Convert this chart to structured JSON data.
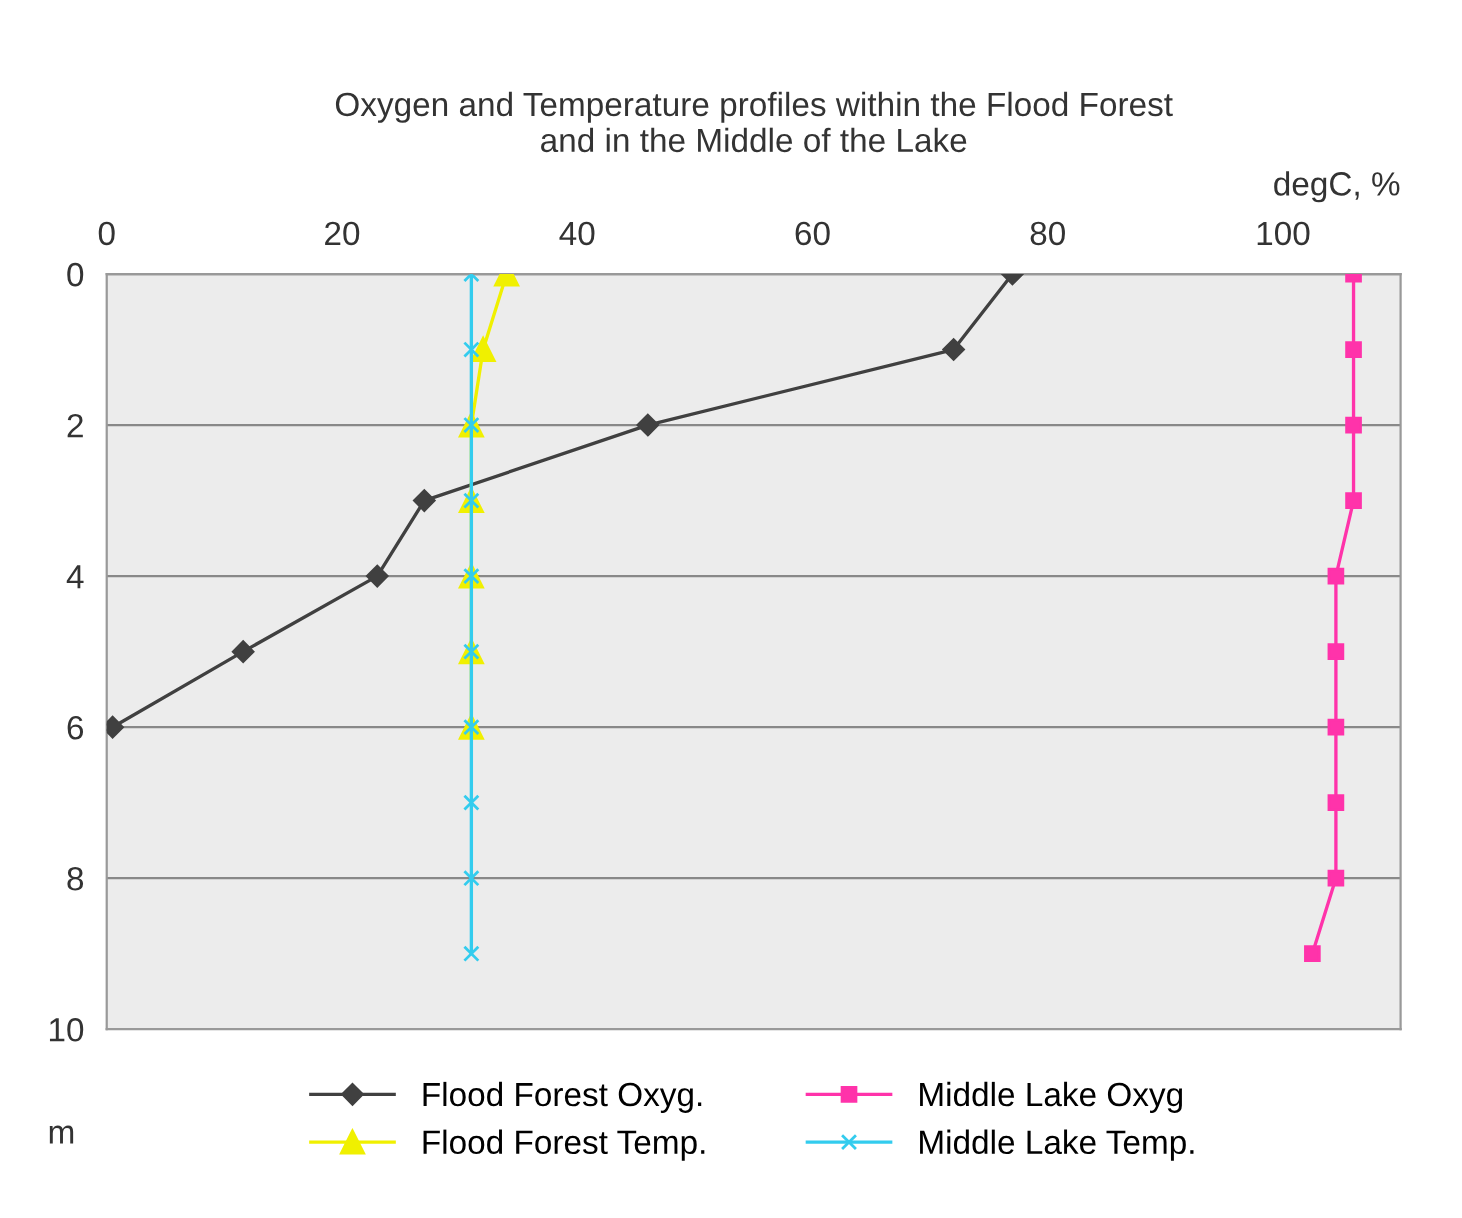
{
  "chart_data": {
    "type": "line",
    "title": "Oxygen and Temperature profiles within the Flood Forest\nand in the Middle of the Lake",
    "xlabel": "degC, %",
    "ylabel": "m",
    "orientation": "horizontal",
    "xlim": [
      0,
      110
    ],
    "xticks": [
      0,
      20,
      40,
      60,
      80,
      100
    ],
    "ylim": [
      10,
      0
    ],
    "yticks": [
      0,
      2,
      4,
      6,
      8,
      10
    ],
    "grid": "y",
    "legend": "bottom",
    "line_style": "solid",
    "series": [
      {
        "name": "Flood Forest Oxyg.",
        "color": "#404040",
        "marker": "diamond",
        "x": [
          0,
          1,
          2,
          3,
          4,
          5,
          6
        ],
        "values": [
          77,
          72,
          46,
          27,
          23,
          11.6,
          0.5
        ]
      },
      {
        "name": "Flood Forest Temp.",
        "color": "#f0f000",
        "marker": "triangle",
        "x": [
          0,
          1,
          2,
          3,
          4,
          5,
          6
        ],
        "values": [
          34,
          32,
          31,
          31,
          31,
          31,
          31
        ]
      },
      {
        "name": "Middle Lake Oxyg",
        "color": "#ff33aa",
        "marker": "square",
        "x": [
          0,
          1,
          2,
          3,
          4,
          5,
          6,
          7,
          8,
          9
        ],
        "values": [
          106,
          106,
          106,
          106,
          104.5,
          104.5,
          104.5,
          104.5,
          104.5,
          102.5
        ]
      },
      {
        "name": "Middle Lake Temp.",
        "color": "#33ccee",
        "marker": "cross",
        "x": [
          0,
          1,
          2,
          3,
          4,
          5,
          6,
          7,
          8,
          9
        ],
        "values": [
          31,
          31,
          31,
          31,
          31,
          31,
          31,
          31,
          31,
          31
        ]
      }
    ]
  }
}
